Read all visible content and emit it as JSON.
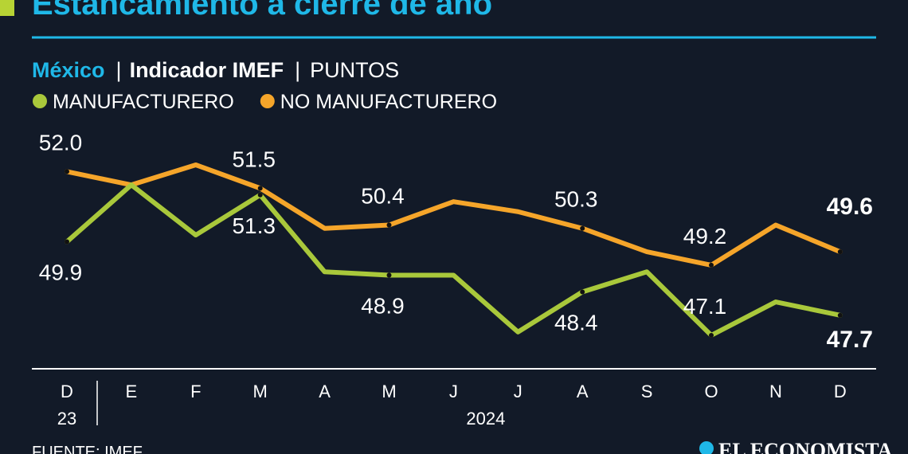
{
  "title": "Estancamiento a cierre de año",
  "subtitle": {
    "country": "México",
    "separator": "|",
    "indicator": "Indicador IMEF",
    "unit": "PUNTOS"
  },
  "chart_data": {
    "type": "line",
    "categories": [
      "D",
      "E",
      "F",
      "M",
      "A",
      "M",
      "J",
      "J",
      "A",
      "S",
      "O",
      "N",
      "D"
    ],
    "year_labels": [
      "23",
      "2024"
    ],
    "series": [
      {
        "name": "MANUFACTURERO",
        "color": "#a9c83b",
        "values": [
          49.9,
          51.6,
          50.1,
          51.3,
          49.0,
          48.9,
          48.9,
          47.2,
          48.4,
          49.0,
          47.1,
          48.1,
          47.7
        ],
        "value_labels": [
          "49.9",
          null,
          null,
          "51.3",
          null,
          "48.9",
          null,
          null,
          "48.4",
          null,
          "47.1",
          null,
          "47.7"
        ]
      },
      {
        "name": "NO MANUFACTURERO",
        "color": "#f5a52a",
        "values": [
          52.0,
          51.6,
          52.2,
          51.5,
          50.3,
          50.4,
          51.1,
          50.8,
          50.3,
          49.6,
          49.2,
          50.4,
          49.6
        ],
        "value_labels": [
          "52.0",
          null,
          null,
          "51.5",
          null,
          "50.4",
          null,
          null,
          "50.3",
          null,
          "49.2",
          null,
          "49.6"
        ]
      }
    ]
  },
  "source": "FUENTE: IMEF",
  "brand": "EL ECONOMISTA"
}
